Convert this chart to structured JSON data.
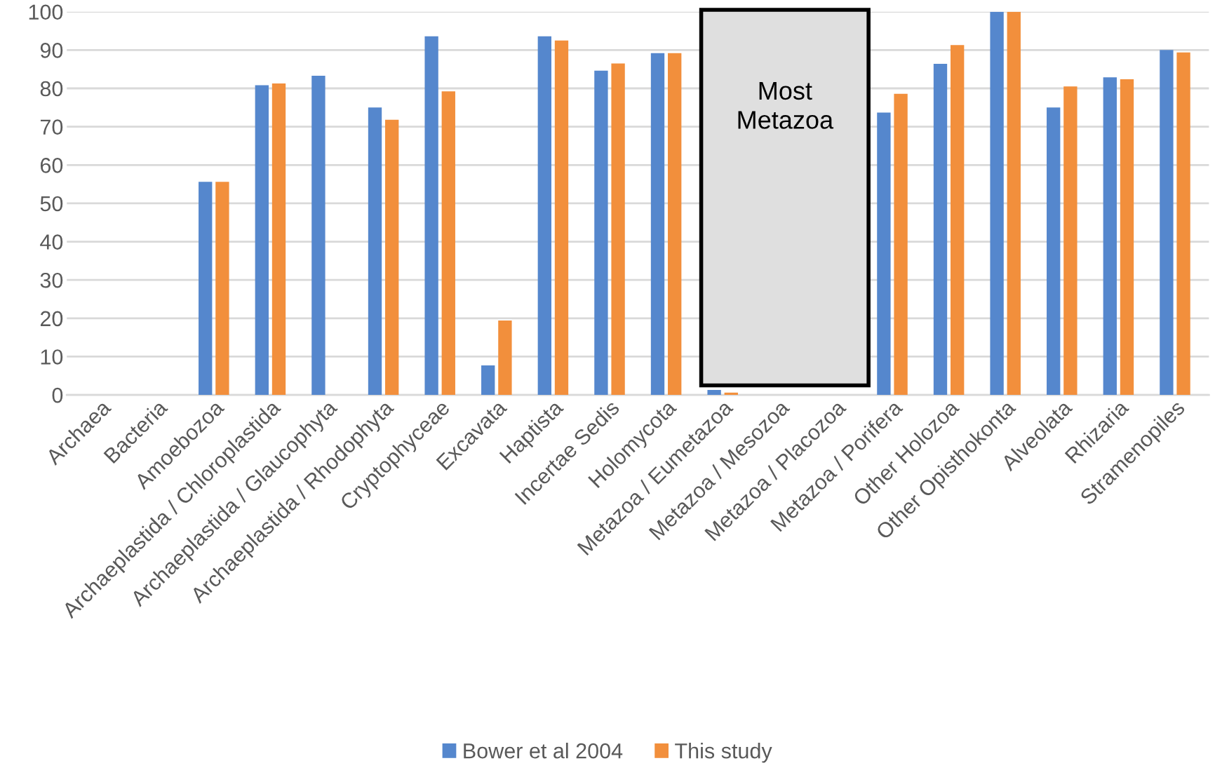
{
  "chart_data": {
    "type": "bar",
    "categories": [
      "Archaea",
      "Bacteria",
      "Amoebozoa",
      "Archaeplastida / Chloroplastida",
      "Archaeplastida / Glaucophyta",
      "Archaeplastida / Rhodophyta",
      "Cryptophyceae",
      "Excavata",
      "Haptista",
      "Incertae Sedis",
      "Holomycota",
      "Metazoa / Eumetazoa",
      "Metazoa / Mesozoa",
      "Metazoa / Placozoa",
      "Metazoa / Porifera",
      "Other Holozoa",
      "Other Opisthokonta",
      "Alveolata",
      "Rhizaria",
      "Stramenopiles"
    ],
    "series": [
      {
        "name": "Bower et al 2004",
        "color": "#5587cd",
        "values": [
          null,
          null,
          55.6,
          80.8,
          83.3,
          75,
          93.6,
          7.7,
          93.6,
          84.6,
          89.2,
          1.3,
          null,
          null,
          73.7,
          86.4,
          100,
          75,
          82.9,
          90
        ]
      },
      {
        "name": "This study",
        "color": "#f28f3c",
        "values": [
          null,
          null,
          55.6,
          81.3,
          null,
          71.8,
          79.2,
          19.4,
          92.5,
          86.5,
          89.2,
          0.6,
          null,
          null,
          78.6,
          91.3,
          100,
          80.5,
          82.4,
          89.4
        ]
      }
    ],
    "ylim": [
      0,
      100
    ],
    "yticks": [
      0,
      10,
      20,
      30,
      40,
      50,
      60,
      70,
      80,
      90,
      100
    ],
    "grid": "y",
    "legend": "bottom",
    "annotations": [
      "Most Metazoa"
    ]
  }
}
